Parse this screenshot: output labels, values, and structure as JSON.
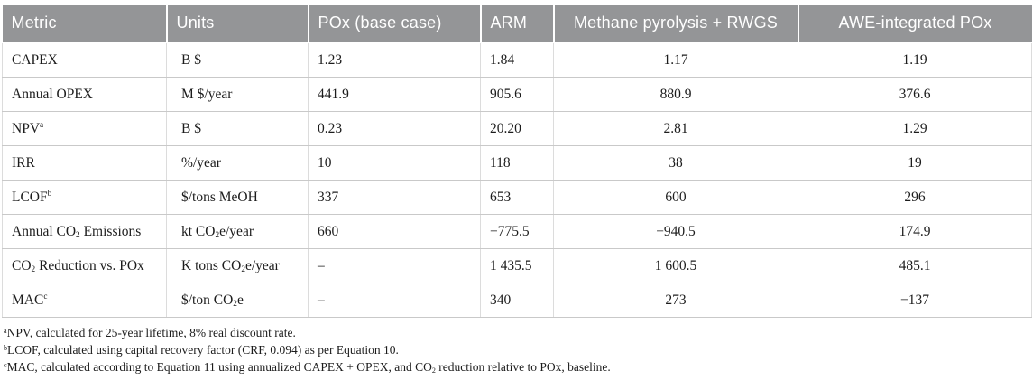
{
  "table": {
    "columns": [
      {
        "label": "Metric"
      },
      {
        "label": "Units"
      },
      {
        "label": "POx (base case)"
      },
      {
        "label": "ARM"
      },
      {
        "label": "Methane pyrolysis + RWGS"
      },
      {
        "label": "AWE-integrated POx"
      }
    ],
    "rows": [
      {
        "metric": "CAPEX",
        "units": "B $",
        "values": [
          "1.23",
          "1.84",
          "1.17",
          "1.19"
        ]
      },
      {
        "metric": "Annual OPEX",
        "units": "M $/year",
        "values": [
          "441.9",
          "905.6",
          "880.9",
          "376.6"
        ]
      },
      {
        "metric": "NPV^a^",
        "units": "B $",
        "values": [
          "0.23",
          "20.20",
          "2.81",
          "1.29"
        ]
      },
      {
        "metric": "IRR",
        "units": "%/year",
        "values": [
          "10",
          "118",
          "38",
          "19"
        ]
      },
      {
        "metric": "LCOF^b^",
        "units": "$/tons MeOH",
        "values": [
          "337",
          "653",
          "600",
          "296"
        ]
      },
      {
        "metric": "Annual CO~2~ Emissions",
        "units": "kt CO~2~e/year",
        "values": [
          "660",
          "−775.5",
          "−940.5",
          "174.9"
        ]
      },
      {
        "metric": "CO~2~ Reduction vs. POx",
        "units": "K tons CO~2~e/year",
        "values": [
          "–",
          "1 435.5",
          "1 600.5",
          "485.1"
        ]
      },
      {
        "metric": "MAC^c^",
        "units": "$/ton CO~2~e",
        "values": [
          "–",
          "340",
          "273",
          "−137"
        ]
      }
    ]
  },
  "footnotes": [
    "^a^NPV, calculated for 25-year lifetime, 8% real discount rate.",
    "^b^LCOF, calculated using capital recovery factor (CRF, 0.094) as per Equation 10.",
    "^c^MAC, calculated according to Equation 11 using annualized CAPEX + OPEX, and CO~2~ reduction relative to POx, baseline."
  ],
  "colors": {
    "header_bg": "#949597",
    "header_text": "#ffffff",
    "body_text": "#1c1c1c",
    "grid_horizontal": "#c9c9c9",
    "grid_vertical": "#dcdcdc"
  }
}
